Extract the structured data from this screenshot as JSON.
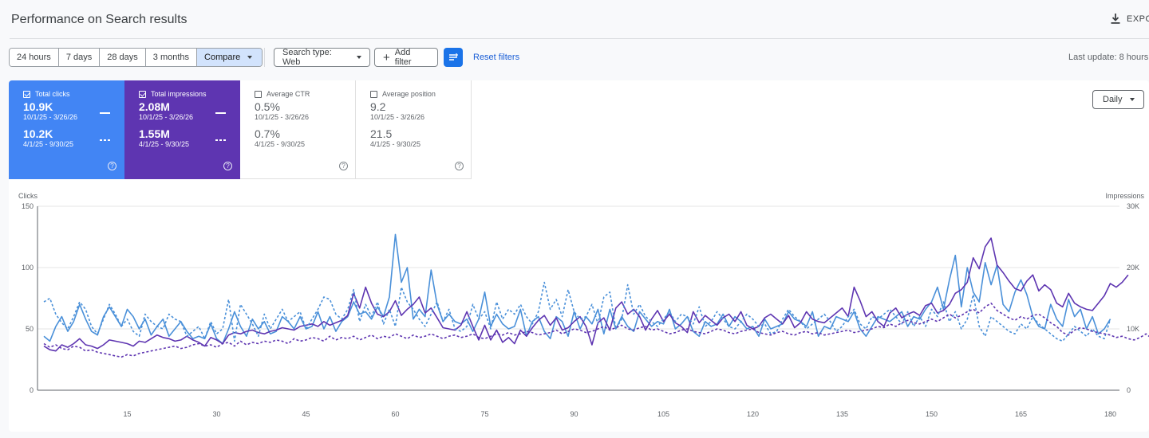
{
  "header": {
    "title": "Performance on Search results",
    "export_label": "EXPO"
  },
  "toolbar": {
    "date_ranges": [
      "24 hours",
      "7 days",
      "28 days",
      "3 months"
    ],
    "compare_label": "Compare",
    "search_type_label": "Search type: Web",
    "add_filter_label": "Add filter",
    "reset_filters_label": "Reset filters",
    "last_update": "Last update: 8 hours"
  },
  "metrics": {
    "clicks": {
      "label": "Total clicks",
      "value": "10.9K",
      "range": "10/1/25 - 3/26/26",
      "compare_value": "10.2K",
      "compare_range": "4/1/25 - 9/30/25",
      "color": "#4285f4"
    },
    "impressions": {
      "label": "Total impressions",
      "value": "2.08M",
      "range": "10/1/25 - 3/26/26",
      "compare_value": "1.55M",
      "compare_range": "4/1/25 - 9/30/25",
      "color": "#5e35b1"
    },
    "ctr": {
      "label": "Average CTR",
      "value": "0.5%",
      "range": "10/1/25 - 3/26/26",
      "compare_value": "0.7%",
      "compare_range": "4/1/25 - 9/30/25"
    },
    "position": {
      "label": "Average position",
      "value": "9.2",
      "range": "10/1/25 - 3/26/26",
      "compare_value": "21.5",
      "compare_range": "4/1/25 - 9/30/25"
    }
  },
  "granularity_label": "Daily",
  "chart_data": {
    "type": "line",
    "ylabel": "Clicks",
    "y2label": "Impressions",
    "ylim": [
      0,
      150
    ],
    "y2lim": [
      0,
      30000
    ],
    "y_ticks": [
      "0",
      "50",
      "100",
      "150"
    ],
    "y2_ticks": [
      "0",
      "10K",
      "20K",
      "30K"
    ],
    "x_ticks": [
      15,
      30,
      45,
      60,
      75,
      90,
      105,
      120,
      135,
      150,
      165,
      180
    ],
    "grid": true,
    "series": [
      {
        "key": "clicks_current",
        "axis": "left",
        "style": "solid",
        "color": "#4a90d9",
        "x_start": 1,
        "values": [
          44,
          40,
          52,
          60,
          48,
          56,
          70,
          58,
          48,
          45,
          60,
          68,
          60,
          52,
          66,
          60,
          50,
          58,
          45,
          52,
          58,
          44,
          50,
          56,
          48,
          42,
          44,
          42,
          54,
          42,
          38,
          50,
          64,
          52,
          44,
          58,
          50,
          56,
          46,
          48,
          60,
          56,
          50,
          60,
          50,
          52,
          64,
          50,
          60,
          48,
          56,
          60,
          72,
          62,
          64,
          58,
          68,
          60,
          76,
          127,
          88,
          100,
          58,
          66,
          60,
          98,
          70,
          56,
          62,
          56,
          54,
          58,
          48,
          58,
          80,
          52,
          62,
          54,
          50,
          52,
          66,
          44,
          56,
          60,
          48,
          42,
          60,
          56,
          44,
          64,
          50,
          60,
          54,
          66,
          46,
          66,
          50,
          60,
          52,
          48,
          64,
          58,
          52,
          56,
          54,
          66,
          50,
          54,
          60,
          48,
          44,
          56,
          52,
          54,
          62,
          52,
          60,
          56,
          50,
          52,
          44,
          58,
          50,
          52,
          54,
          64,
          58,
          56,
          52,
          64,
          44,
          52,
          50,
          60,
          58,
          56,
          64,
          50,
          44,
          52,
          60,
          58,
          56,
          60,
          64,
          52,
          60,
          58,
          66,
          72,
          84,
          66,
          90,
          110,
          68,
          100,
          80,
          72,
          104,
          86,
          102,
          70,
          64,
          80,
          90,
          78,
          60,
          52,
          50,
          70,
          58,
          52,
          74,
          60,
          66,
          50,
          60,
          46,
          50,
          58
        ],
        "name": ""
      },
      {
        "key": "impressions_current",
        "axis": "right",
        "style": "solid",
        "color": "#5e35b1",
        "x_start": 1,
        "values": [
          7200,
          6600,
          6400,
          7400,
          7000,
          7600,
          8400,
          7400,
          7200,
          6800,
          7400,
          8200,
          8000,
          7800,
          7600,
          7200,
          8000,
          7800,
          8400,
          9000,
          8600,
          8400,
          8000,
          8200,
          8800,
          8200,
          7800,
          7200,
          8600,
          8200,
          7600,
          9000,
          9400,
          9200,
          9600,
          9800,
          9400,
          9200,
          9600,
          9800,
          10200,
          10000,
          9800,
          10400,
          10600,
          10800,
          10400,
          11200,
          10600,
          11000,
          11400,
          12200,
          15800,
          13400,
          16800,
          14200,
          12400,
          12000,
          12800,
          14600,
          12200,
          13200,
          14000,
          15200,
          12600,
          13400,
          11800,
          10200,
          10000,
          9800,
          10600,
          12800,
          10400,
          8200,
          10600,
          8200,
          9800,
          7800,
          8600,
          7600,
          9800,
          8800,
          10200,
          11400,
          12200,
          10600,
          11800,
          9800,
          10200,
          11200,
          12000,
          10400,
          7400,
          11000,
          11800,
          9800,
          13400,
          14400,
          12400,
          13200,
          12000,
          9800,
          11600,
          13000,
          11200,
          12400,
          11000,
          10400,
          9400,
          12800,
          11000,
          12200,
          11400,
          10600,
          11800,
          12400,
          11200,
          12800,
          10600,
          10000,
          10400,
          11800,
          12400,
          11600,
          10800,
          12200,
          10200,
          11000,
          12800,
          11600,
          11200,
          11000,
          11800,
          12600,
          13400,
          12000,
          16800,
          14600,
          12000,
          12800,
          11200,
          10400,
          12600,
          13400,
          11800,
          12400,
          12800,
          12200,
          13800,
          14200,
          12600,
          13000,
          14000,
          15800,
          16400,
          17600,
          21600,
          19800,
          23400,
          24800,
          20400,
          19200,
          17800,
          16600,
          16200,
          17800,
          18800,
          16200,
          17200,
          16400,
          14200,
          13600,
          15800,
          14200,
          13600,
          13200,
          13000,
          14200,
          15400,
          17400,
          16800,
          17600,
          18800
        ],
        "name": ""
      },
      {
        "key": "clicks_previous",
        "axis": "left",
        "style": "dashed",
        "color": "#4a90d9",
        "x_start": 1,
        "values": [
          72,
          75,
          62,
          55,
          50,
          60,
          72,
          66,
          52,
          46,
          58,
          70,
          62,
          52,
          58,
          48,
          44,
          62,
          56,
          52,
          50,
          62,
          58,
          56,
          44,
          48,
          52,
          42,
          56,
          46,
          50,
          74,
          40,
          70,
          62,
          54,
          44,
          62,
          50,
          58,
          66,
          56,
          60,
          64,
          50,
          58,
          66,
          76,
          74,
          62,
          58,
          66,
          82,
          56,
          70,
          60,
          72,
          54,
          66,
          52,
          84,
          72,
          66,
          58,
          52,
          62,
          72,
          56,
          66,
          50,
          48,
          52,
          70,
          58,
          64,
          50,
          72,
          58,
          66,
          62,
          70,
          60,
          54,
          64,
          88,
          66,
          74,
          60,
          82,
          64,
          58,
          60,
          70,
          54,
          76,
          80,
          50,
          58,
          86,
          62,
          70,
          60,
          56,
          52,
          58,
          64,
          56,
          62,
          60,
          54,
          68,
          52,
          56,
          64,
          58,
          52,
          50,
          56,
          62,
          58,
          52,
          54,
          46,
          48,
          58,
          66,
          60,
          56,
          50,
          54,
          58,
          62,
          56,
          48,
          52,
          60,
          66,
          54,
          50,
          60,
          58,
          62,
          66,
          60,
          54,
          64,
          52,
          60,
          52,
          66,
          60,
          72,
          56,
          64,
          50,
          58,
          78,
          52,
          44,
          60,
          56,
          52,
          48,
          46,
          54,
          50,
          60,
          54,
          50,
          46,
          42,
          40,
          46,
          52,
          48,
          44,
          50,
          44,
          42,
          58
        ],
        "name": ""
      },
      {
        "key": "impressions_previous",
        "axis": "right",
        "style": "dashed",
        "color": "#5e35b1",
        "x_start": 1,
        "values": [
          7600,
          7000,
          7400,
          6800,
          6600,
          7200,
          7000,
          6400,
          6600,
          6200,
          6000,
          5800,
          5600,
          5400,
          5800,
          5600,
          6000,
          6200,
          6400,
          6600,
          6800,
          7000,
          7200,
          6800,
          7000,
          7400,
          7600,
          7200,
          7400,
          7000,
          7600,
          7800,
          7200,
          8000,
          7400,
          7800,
          7600,
          8000,
          7800,
          8200,
          8000,
          7600,
          8400,
          8000,
          8200,
          8600,
          8400,
          8000,
          8800,
          8200,
          8600,
          8400,
          8800,
          8200,
          8600,
          9000,
          8400,
          8800,
          8600,
          9200,
          8800,
          8400,
          9000,
          8600,
          8800,
          9200,
          8800,
          8400,
          8800,
          9000,
          8600,
          8800,
          9200,
          8600,
          8400,
          8800,
          9200,
          9000,
          9400,
          9000,
          9200,
          9600,
          9400,
          9000,
          9200,
          9400,
          9800,
          9200,
          9600,
          10000,
          9800,
          9400,
          9600,
          10000,
          10400,
          9800,
          10200,
          10600,
          10000,
          9800,
          10200,
          10400,
          9800,
          10000,
          9600,
          9200,
          9400,
          9800,
          10000,
          9600,
          9400,
          9200,
          9600,
          10000,
          9800,
          9400,
          9200,
          9600,
          9800,
          10000,
          9400,
          9200,
          9000,
          9400,
          9600,
          9200,
          9000,
          9400,
          9600,
          9200,
          9400,
          9000,
          9200,
          9400,
          9600,
          9800,
          9400,
          9600,
          9800,
          10000,
          10400,
          10200,
          10800,
          10400,
          11000,
          11400,
          11000,
          10800,
          11200,
          11600,
          11200,
          11800,
          12400,
          11800,
          12200,
          12800,
          13200,
          12600,
          13600,
          14200,
          13000,
          12400,
          11800,
          11400,
          12000,
          11600,
          12200,
          12400,
          11800,
          11000,
          10400,
          9400,
          9000,
          9800,
          10200,
          10000,
          9600,
          9400,
          9200,
          9000,
          8600,
          8800,
          8400,
          8200,
          8600,
          9200,
          8400,
          8000
        ],
        "name": ""
      }
    ]
  }
}
